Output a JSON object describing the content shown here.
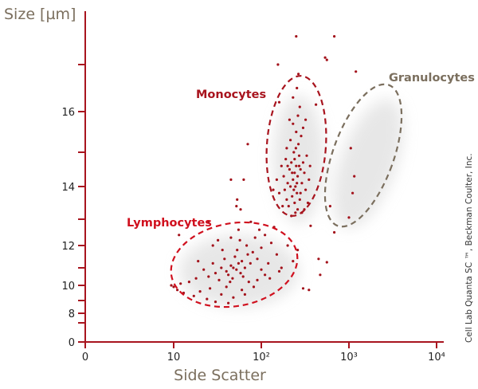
{
  "chart_data": {
    "type": "scatter",
    "title": "",
    "xlabel": "Side Scatter",
    "ylabel": "Size [µm]",
    "x_scale": "log",
    "x_ticks": [
      {
        "value": 0,
        "label": "0"
      },
      {
        "value": 10,
        "label": "10"
      },
      {
        "value": 100,
        "label": "10²"
      },
      {
        "value": 1000,
        "label": "10³"
      },
      {
        "value": 10000,
        "label": "10⁴"
      }
    ],
    "y_ticks": [
      {
        "value": 0,
        "label": "0"
      },
      {
        "value": 7,
        "label": ""
      },
      {
        "value": 8,
        "label": "8"
      },
      {
        "value": 9,
        "label": ""
      },
      {
        "value": 10,
        "label": "10"
      },
      {
        "value": 11,
        "label": ""
      },
      {
        "value": 12,
        "label": "12"
      },
      {
        "value": 13,
        "label": ""
      },
      {
        "value": 14,
        "label": "14"
      },
      {
        "value": 15,
        "label": ""
      },
      {
        "value": 16,
        "label": "16"
      },
      {
        "value": 17,
        "label": ""
      }
    ],
    "grid": false,
    "colors": {
      "axis": "#a8141e",
      "points": "#a3121b",
      "lymphocytes": "#d0101e",
      "monocytes": "#a8141e",
      "granulocytes": "#7b6f5e"
    },
    "populations": [
      {
        "name": "Lymphocytes",
        "points": [
          [
            48,
            11
          ],
          [
            52,
            10.9
          ],
          [
            45,
            11.1
          ],
          [
            55,
            11.2
          ],
          [
            40,
            10.8
          ],
          [
            60,
            11.3
          ],
          [
            50,
            11.5
          ],
          [
            42,
            10.6
          ],
          [
            65,
            11
          ],
          [
            58,
            10.7
          ],
          [
            35,
            11
          ],
          [
            70,
            11.6
          ],
          [
            47,
            10.4
          ],
          [
            38,
            11.4
          ],
          [
            62,
            10.5
          ],
          [
            75,
            11.2
          ],
          [
            30,
            10.7
          ],
          [
            53,
            11.8
          ],
          [
            44,
            10.2
          ],
          [
            80,
            11.7
          ],
          [
            28,
            11.2
          ],
          [
            68,
            12
          ],
          [
            33,
            10.3
          ],
          [
            90,
            11.4
          ],
          [
            25,
            10.5
          ],
          [
            85,
            12.3
          ],
          [
            57,
            12.2
          ],
          [
            22,
            10.9
          ],
          [
            100,
            11.9
          ],
          [
            40,
            9.9
          ],
          [
            72,
            10.2
          ],
          [
            110,
            12.4
          ],
          [
            18,
            10.4
          ],
          [
            95,
            12.6
          ],
          [
            26,
            9.8
          ],
          [
            120,
            11.2
          ],
          [
            15,
            10.2
          ],
          [
            60,
            9.7
          ],
          [
            130,
            12.1
          ],
          [
            20,
            9.6
          ],
          [
            82,
            9.9
          ],
          [
            140,
            12.7
          ],
          [
            12,
            10.1
          ],
          [
            35,
            9.4
          ],
          [
            150,
            11.6
          ],
          [
            17,
            9.3
          ],
          [
            48,
            9.2
          ],
          [
            170,
            11
          ],
          [
            10,
            9.9
          ],
          [
            24,
            9.1
          ],
          [
            65,
            9.4
          ],
          [
            200,
            12
          ],
          [
            13,
            9.5
          ],
          [
            30,
            8.9
          ],
          [
            90,
            10.3
          ],
          [
            230,
            11.3
          ],
          [
            11,
            9.7
          ],
          [
            42,
            8.8
          ],
          [
            110,
            10.6
          ],
          [
            260,
            11.8
          ],
          [
            28,
            12
          ],
          [
            55,
            12.6
          ],
          [
            76,
            12.9
          ],
          [
            36,
            11.8
          ],
          [
            100,
            10.9
          ],
          [
            125,
            10.4
          ],
          [
            160,
            10.8
          ],
          [
            45,
            12.3
          ],
          [
            19,
            11.3
          ],
          [
            32,
            12.2
          ]
        ]
      },
      {
        "name": "Monocytes",
        "points": [
          [
            240,
            14.4
          ],
          [
            250,
            14.6
          ],
          [
            230,
            14.2
          ],
          [
            260,
            14.3
          ],
          [
            220,
            14.7
          ],
          [
            270,
            14.9
          ],
          [
            245,
            14
          ],
          [
            210,
            14.5
          ],
          [
            280,
            14.5
          ],
          [
            235,
            15
          ],
          [
            255,
            13.8
          ],
          [
            200,
            14.1
          ],
          [
            290,
            14.1
          ],
          [
            225,
            13.7
          ],
          [
            265,
            15.2
          ],
          [
            190,
            14.8
          ],
          [
            300,
            14.7
          ],
          [
            240,
            13.5
          ],
          [
            215,
            15.3
          ],
          [
            275,
            13.6
          ],
          [
            185,
            13.9
          ],
          [
            310,
            14.4
          ],
          [
            250,
            15.5
          ],
          [
            205,
            13.4
          ],
          [
            285,
            15.4
          ],
          [
            180,
            14.3
          ],
          [
            320,
            13.9
          ],
          [
            230,
            15.7
          ],
          [
            260,
            13.3
          ],
          [
            195,
            15.1
          ],
          [
            300,
            15.6
          ],
          [
            170,
            14.6
          ],
          [
            245,
            13.2
          ],
          [
            330,
            14.9
          ],
          [
            210,
            15.8
          ],
          [
            275,
            16.1
          ],
          [
            255,
            16.5
          ],
          [
            160,
            13.8
          ],
          [
            340,
            13.5
          ],
          [
            220,
            13.1
          ],
          [
            290,
            13.2
          ],
          [
            175,
            13.4
          ],
          [
            350,
            14.2
          ],
          [
            265,
            16.8
          ],
          [
            240,
            14.8
          ],
          [
            225,
            14.4
          ],
          [
            255,
            14.1
          ],
          [
            270,
            14.6
          ],
          [
            235,
            13.9
          ],
          [
            248,
            15.1
          ],
          [
            215,
            14
          ],
          [
            280,
            13.8
          ],
          [
            200,
            14.6
          ],
          [
            262,
            15.9
          ],
          [
            230,
            16.3
          ],
          [
            310,
            13.3
          ],
          [
            195,
            13.6
          ],
          [
            360,
            14.6
          ],
          [
            150,
            14.2
          ],
          [
            320,
            15.8
          ]
        ]
      },
      {
        "name": "Granulocytes",
        "points": []
      },
      {
        "name": "",
        "points": [
          [
            250,
            17.6
          ],
          [
            680,
            17.6
          ],
          [
            155,
            17
          ],
          [
            535,
            17.15
          ],
          [
            560,
            17.1
          ],
          [
            160,
            16.2
          ],
          [
            420,
            16.15
          ],
          [
            1200,
            16.85
          ],
          [
            70,
            15.2
          ],
          [
            45,
            14.2
          ],
          [
            63,
            14.2
          ],
          [
            53,
            13.6
          ],
          [
            137,
            13.9
          ],
          [
            1050,
            15.1
          ],
          [
            1150,
            14.3
          ],
          [
            1100,
            13.8
          ],
          [
            1000,
            13.05
          ],
          [
            610,
            13.4
          ],
          [
            58,
            13.3
          ],
          [
            25,
            12.9
          ],
          [
            11.5,
            12.4
          ],
          [
            365,
            12.75
          ],
          [
            680,
            12.5
          ],
          [
            450,
            11.4
          ],
          [
            560,
            11.25
          ],
          [
            470,
            10.6
          ],
          [
            300,
            9.8
          ],
          [
            350,
            9.7
          ],
          [
            52,
            13.4
          ],
          [
            9.4,
            10
          ]
        ]
      }
    ]
  },
  "credit": "Cell Lab Quanta SC ™, Beckman Coulter, Inc."
}
